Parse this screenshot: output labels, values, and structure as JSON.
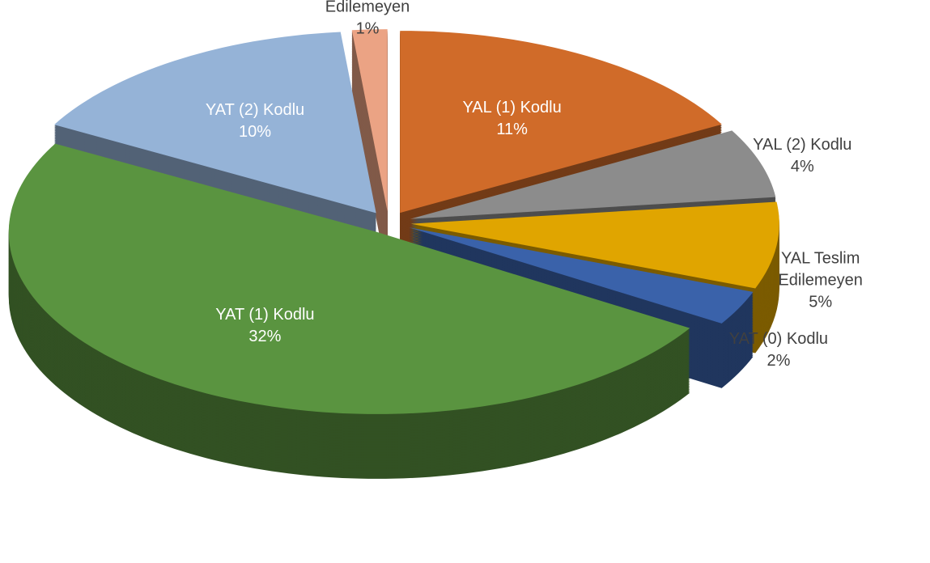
{
  "chart_data": {
    "type": "pie3d",
    "categories": [
      "YAL (1) Kodlu",
      "YAL (2) Kodlu",
      "YAL Teslim Edilemeyen",
      "YAT (0) Kodlu",
      "YAT (1) Kodlu",
      "YAT (2) Kodlu",
      "YAT Teslim Edilemeyen"
    ],
    "values": [
      11,
      4,
      5,
      2,
      32,
      10,
      1
    ],
    "value_labels": [
      "11%",
      "4%",
      "5%",
      "2%",
      "32%",
      "10%",
      "1%"
    ],
    "colors": [
      "#d06b29",
      "#8c8c8c",
      "#e0a500",
      "#3a62aa",
      "#5a9440",
      "#95b3d7",
      "#eba384"
    ]
  }
}
